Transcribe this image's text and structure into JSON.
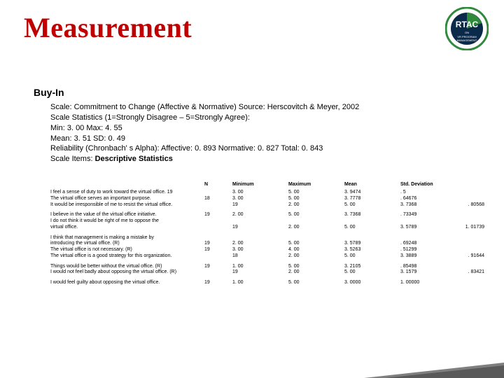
{
  "title": "Measurement",
  "subheading": "Buy-In",
  "desc": {
    "l1": "Scale: Commitment to Change (Affective & Normative) Source: Herscovitch & Meyer, 2002",
    "l2": "Scale Statistics (1=Strongly Disagree – 5=Strongly Agree):",
    "l3": "Min: 3. 00 Max: 4. 55",
    "l4": "Mean: 3. 51 SD: 0. 49",
    "l5": "Reliability (Chronbach' s Alpha): Affective: 0. 893 Normative: 0. 827 Total: 0. 843",
    "l6a": "Scale Items: ",
    "l6b": "Descriptive Statistics"
  },
  "hdr": {
    "n": "N",
    "min": "Minimum",
    "max": "Maximum",
    "mean": "Mean",
    "sd": "Std. Deviation"
  },
  "rows": [
    {
      "label": "I feel a sense of duty to work toward the virtual office. 19",
      "n": "",
      "min": "3. 00",
      "max": "5. 00",
      "mean": "3. 9474",
      "sd": ". 5",
      "extra": ""
    },
    {
      "label": "The virtual office serves an important purpose.",
      "n": "18",
      "min": "3. 00",
      "max": "5. 00",
      "mean": "3. 7778",
      "sd": ". 64676",
      "extra": ""
    },
    {
      "label": "It would be irresponsible of me to resist the virtual office.",
      "n": "",
      "min": "19",
      "max": "2. 00",
      "mean": "5. 00",
      "sd": "3. 7368",
      "extra": ". 80568"
    }
  ],
  "rows2": [
    {
      "label": "I believe in the value of the virtual office initiative.",
      "n": "19",
      "min": "2. 00",
      "max": "5. 00",
      "mean": "3. 7368",
      "sd": ". 73349",
      "extra": ""
    },
    {
      "label": "I do not think it would be right of me to oppose the",
      "n": "",
      "min": "",
      "max": "",
      "mean": "",
      "sd": "",
      "extra": ""
    },
    {
      "label": "virtual office.",
      "n": "",
      "min": "19",
      "max": "2. 00",
      "mean": "5. 00",
      "sd": "3. 5789",
      "extra": "1. 01739"
    }
  ],
  "rows3": [
    {
      "label": "I think that management is making a mistake by",
      "n": "",
      "min": "",
      "max": "",
      "mean": "",
      "sd": "",
      "extra": ""
    },
    {
      "label": "introducing the virtual office. (R)",
      "n": "19",
      "min": "2. 00",
      "max": "5. 00",
      "mean": "3. 5789",
      "sd": ". 69248",
      "extra": ""
    },
    {
      "label": "The virtual office is not necessary. (R)",
      "n": "19",
      "min": "3. 00",
      "max": "4. 00",
      "mean": "3. 5263",
      "sd": ". 51299",
      "extra": ""
    },
    {
      "label": "The virtual office is a good strategy for this organization.",
      "n": "",
      "min": "18",
      "max": "2. 00",
      "mean": "5. 00",
      "sd": "3. 3889",
      "extra": ". 91644"
    }
  ],
  "rows4": [
    {
      "label": "Things would be better without the virtual office. (R)",
      "n": "19",
      "min": "1. 00",
      "max": "5. 00",
      "mean": "3. 2105",
      "sd": ". 85498",
      "extra": ""
    },
    {
      "label": "I would not feel badly about opposing the virtual office. (R)",
      "n": "",
      "min": "19",
      "max": "2. 00",
      "mean": "5. 00",
      "sd": "3. 1579",
      "extra": ". 83421"
    }
  ],
  "rows5": [
    {
      "label": "I would feel guilty about opposing the virtual office.",
      "n": "19",
      "min": "1. 00",
      "max": "5. 00",
      "mean": "3. 0000",
      "sd": "1. 00000",
      "extra": ""
    }
  ],
  "colors": {
    "title": "#c00000",
    "text": "#000000",
    "bg": "#ffffff",
    "triangleOuter": "#7f7f7f",
    "triangleInner": "#595959",
    "logoGreen": "#2f8a3c",
    "logoNavy": "#0b2a4a"
  }
}
